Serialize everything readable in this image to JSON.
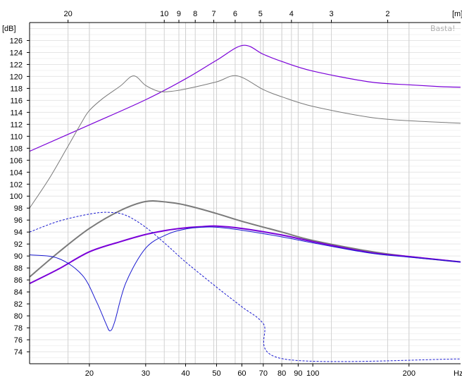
{
  "chart_data": {
    "type": "line",
    "watermark": "Basta!",
    "ylabel": "[dB]",
    "xlabel": "Hz",
    "top_axis_label": "[m]",
    "x_scale": "log",
    "xlim": [
      13,
      290
    ],
    "ylim": [
      72,
      129
    ],
    "grid": true,
    "y_ticks": [
      74,
      76,
      78,
      80,
      82,
      84,
      86,
      88,
      90,
      92,
      94,
      96,
      98,
      100,
      102,
      104,
      106,
      108,
      110,
      112,
      114,
      116,
      118,
      120,
      122,
      124,
      126
    ],
    "x_ticks": [
      20,
      30,
      40,
      50,
      60,
      70,
      80,
      90,
      100,
      200
    ],
    "top_ticks": [
      20,
      10,
      9,
      8,
      7,
      6,
      5,
      4,
      3,
      2
    ],
    "colors": {
      "gray": "#7a7a7a",
      "purple": "#7a00d8",
      "blue": "#1a1ad0"
    },
    "series": [
      {
        "color_key": "purple",
        "width": 1.2,
        "dash": false,
        "x": [
          13,
          20,
          30,
          40,
          50,
          60.5,
          70,
          80,
          100,
          150,
          200,
          250,
          290
        ],
        "y": [
          107.5,
          111.9,
          116.1,
          119.6,
          122.7,
          125.2,
          123.7,
          122.5,
          120.9,
          119.1,
          118.6,
          118.3,
          118.2
        ]
      },
      {
        "color_key": "gray",
        "width": 1.0,
        "dash": false,
        "x": [
          13,
          15,
          17,
          19,
          20,
          22,
          25,
          27.5,
          30,
          33,
          36,
          40,
          50,
          58,
          70,
          80,
          100,
          150,
          200,
          290
        ],
        "y": [
          98,
          103,
          108,
          112.5,
          114.3,
          116.3,
          118.4,
          120.1,
          118.5,
          117.5,
          117.5,
          117.9,
          119.1,
          120.1,
          117.8,
          116.6,
          115,
          113.2,
          112.6,
          112.2
        ]
      },
      {
        "color_key": "gray",
        "width": 2.0,
        "dash": false,
        "x": [
          13,
          16,
          20,
          25,
          30,
          35,
          40,
          50,
          60,
          80,
          100,
          150,
          200,
          290
        ],
        "y": [
          86.5,
          90.6,
          94.6,
          97.6,
          99.1,
          99,
          98.5,
          97.1,
          95.8,
          94,
          92.6,
          90.8,
          89.9,
          89
        ]
      },
      {
        "color_key": "purple",
        "width": 2.0,
        "dash": false,
        "x": [
          13,
          16,
          20,
          25,
          30,
          35,
          40,
          45,
          50,
          60,
          80,
          100,
          150,
          200,
          290
        ],
        "y": [
          85.4,
          87.8,
          90.7,
          92.4,
          93.6,
          94.3,
          94.7,
          94.9,
          95,
          94.6,
          93.5,
          92.4,
          90.6,
          89.9,
          89
        ]
      },
      {
        "color_key": "blue",
        "width": 1.0,
        "dash": false,
        "x": [
          13,
          16,
          19,
          21,
          22.5,
          23.2,
          24,
          26,
          30,
          35,
          40,
          45,
          50,
          60,
          80,
          100,
          150,
          200,
          290
        ],
        "y": [
          90.2,
          89.6,
          86.8,
          82.5,
          78.8,
          77.5,
          79,
          85.5,
          91.3,
          93.6,
          94.5,
          94.8,
          94.8,
          94.3,
          93.2,
          92.2,
          90.5,
          89.8,
          89
        ]
      },
      {
        "color_key": "blue",
        "width": 1.0,
        "dash": true,
        "x": [
          13,
          16,
          20,
          23,
          26,
          30,
          35,
          40,
          50,
          60,
          70,
          81,
          290
        ],
        "y": [
          94,
          95.8,
          97,
          97.3,
          96.8,
          94.8,
          91.8,
          89,
          84.8,
          81.5,
          78.7,
          72.8,
          72.8
        ]
      }
    ]
  }
}
